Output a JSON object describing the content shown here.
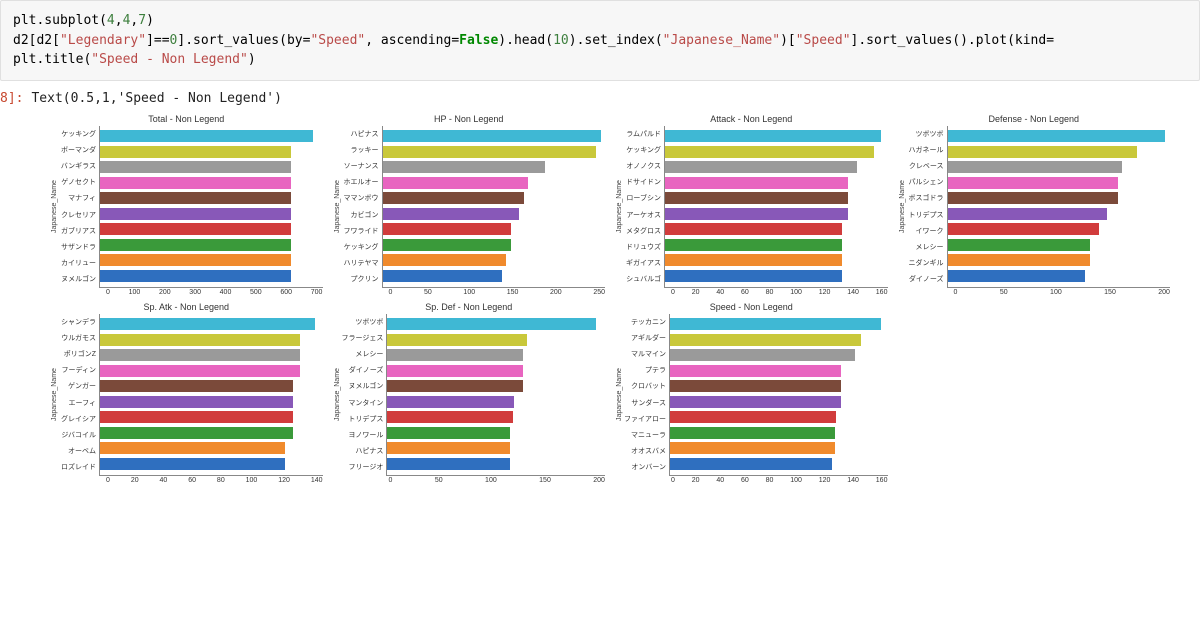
{
  "code": {
    "line1_parts": [
      {
        "t": "plt.subplot(",
        "c": ""
      },
      {
        "t": "4",
        "c": "num"
      },
      {
        "t": ",",
        "c": ""
      },
      {
        "t": "4",
        "c": "num"
      },
      {
        "t": ",",
        "c": ""
      },
      {
        "t": "7",
        "c": "num"
      },
      {
        "t": ")",
        "c": ""
      }
    ],
    "line2_parts": [
      {
        "t": "d2[d2[",
        "c": ""
      },
      {
        "t": "\"Legendary\"",
        "c": "str"
      },
      {
        "t": "]==",
        "c": ""
      },
      {
        "t": "0",
        "c": "num"
      },
      {
        "t": "].sort_values(by=",
        "c": ""
      },
      {
        "t": "\"Speed\"",
        "c": "str"
      },
      {
        "t": ", ascending=",
        "c": ""
      },
      {
        "t": "False",
        "c": "kw"
      },
      {
        "t": ").head(",
        "c": ""
      },
      {
        "t": "10",
        "c": "num"
      },
      {
        "t": ").set_index(",
        "c": ""
      },
      {
        "t": "\"Japanese_Name\"",
        "c": "str"
      },
      {
        "t": ")[",
        "c": ""
      },
      {
        "t": "\"Speed\"",
        "c": "str"
      },
      {
        "t": "].sort_values().plot(kind=",
        "c": ""
      }
    ],
    "line3_parts": [
      {
        "t": "plt.title(",
        "c": ""
      },
      {
        "t": "\"Speed - Non Legend\"",
        "c": "str"
      },
      {
        "t": ")",
        "c": ""
      }
    ]
  },
  "output_prompt": "8]:",
  "output_text": "Text(0.5,1,'Speed - Non Legend')",
  "axis_label": "Japanese_Name",
  "bar_colors": [
    "#3fb8d4",
    "#c9c83a",
    "#9a9a9a",
    "#e865c0",
    "#7b4a3a",
    "#8858b8",
    "#d13c3c",
    "#3a9a3a",
    "#f08a2c",
    "#2f6fbf"
  ],
  "charts": [
    {
      "title": "Total - Non Legend",
      "xmax": 700,
      "xticks": [
        0,
        100,
        200,
        300,
        400,
        500,
        600,
        700
      ],
      "labels": [
        "ケッキング",
        "ボーマンダ",
        "バンギラス",
        "ゲノセクト",
        "マナフィ",
        "クレセリア",
        "ガブリアス",
        "サザンドラ",
        "カイリュー",
        "ヌメルゴン"
      ],
      "values": [
        670,
        600,
        600,
        600,
        600,
        600,
        600,
        600,
        600,
        600
      ]
    },
    {
      "title": "HP - Non Legend",
      "xmax": 260,
      "xticks": [
        0,
        50,
        100,
        150,
        200,
        250
      ],
      "labels": [
        "ハピナス",
        "ラッキー",
        "ソーナンス",
        "ホエルオー",
        "ママンボウ",
        "カビゴン",
        "フワライド",
        "ケッキング",
        "ハリテヤマ",
        "プクリン"
      ],
      "values": [
        255,
        250,
        190,
        170,
        165,
        160,
        150,
        150,
        144,
        140
      ]
    },
    {
      "title": "Attack - Non Legend",
      "xmax": 170,
      "xticks": [
        0,
        20,
        40,
        60,
        80,
        100,
        120,
        140,
        160
      ],
      "labels": [
        "ラムパルド",
        "ケッキング",
        "オノノクス",
        "ドサイドン",
        "ローブシン",
        "アーケオス",
        "メタグロス",
        "ドリュウズ",
        "ギガイアス",
        "シュバルゴ"
      ],
      "values": [
        165,
        160,
        147,
        140,
        140,
        140,
        135,
        135,
        135,
        135
      ]
    },
    {
      "title": "Defense - Non Legend",
      "xmax": 235,
      "xticks": [
        0,
        50,
        100,
        150,
        200
      ],
      "labels": [
        "ツボツボ",
        "ハガネール",
        "クレベース",
        "パルシェン",
        "ボスゴドラ",
        "トリデプス",
        "イワーク",
        "メレシー",
        "ニダンギル",
        "ダイノーズ"
      ],
      "values": [
        230,
        200,
        184,
        180,
        180,
        168,
        160,
        150,
        150,
        145
      ]
    },
    {
      "title": "Sp. Atk - Non Legend",
      "xmax": 150,
      "xticks": [
        0,
        20,
        40,
        60,
        80,
        100,
        120,
        140
      ],
      "labels": [
        "シャンデラ",
        "ウルガモス",
        "ポリゴンZ",
        "フーディン",
        "ゲンガー",
        "エーフィ",
        "グレイシア",
        "ジバコイル",
        "オーベム",
        "ロズレイド"
      ],
      "values": [
        145,
        135,
        135,
        135,
        130,
        130,
        130,
        130,
        125,
        125
      ]
    },
    {
      "title": "Sp. Def - Non Legend",
      "xmax": 240,
      "xticks": [
        0,
        50,
        100,
        150,
        200
      ],
      "labels": [
        "ツボツボ",
        "フラージェス",
        "メレシー",
        "ダイノーズ",
        "ヌメルゴン",
        "マンタイン",
        "トリデプス",
        "ヨノワール",
        "ハピナス",
        "フリージオ"
      ],
      "values": [
        230,
        154,
        150,
        150,
        150,
        140,
        138,
        135,
        135,
        135
      ]
    },
    {
      "title": "Speed - Non Legend",
      "xmax": 165,
      "xticks": [
        0,
        20,
        40,
        60,
        80,
        100,
        120,
        140,
        160
      ],
      "labels": [
        "テッカニン",
        "アギルダー",
        "マルマイン",
        "プテラ",
        "クロバット",
        "サンダース",
        "ファイアロー",
        "マニューラ",
        "オオスバメ",
        "オンバーン"
      ],
      "values": [
        160,
        145,
        140,
        130,
        130,
        130,
        126,
        125,
        125,
        123
      ]
    }
  ]
}
